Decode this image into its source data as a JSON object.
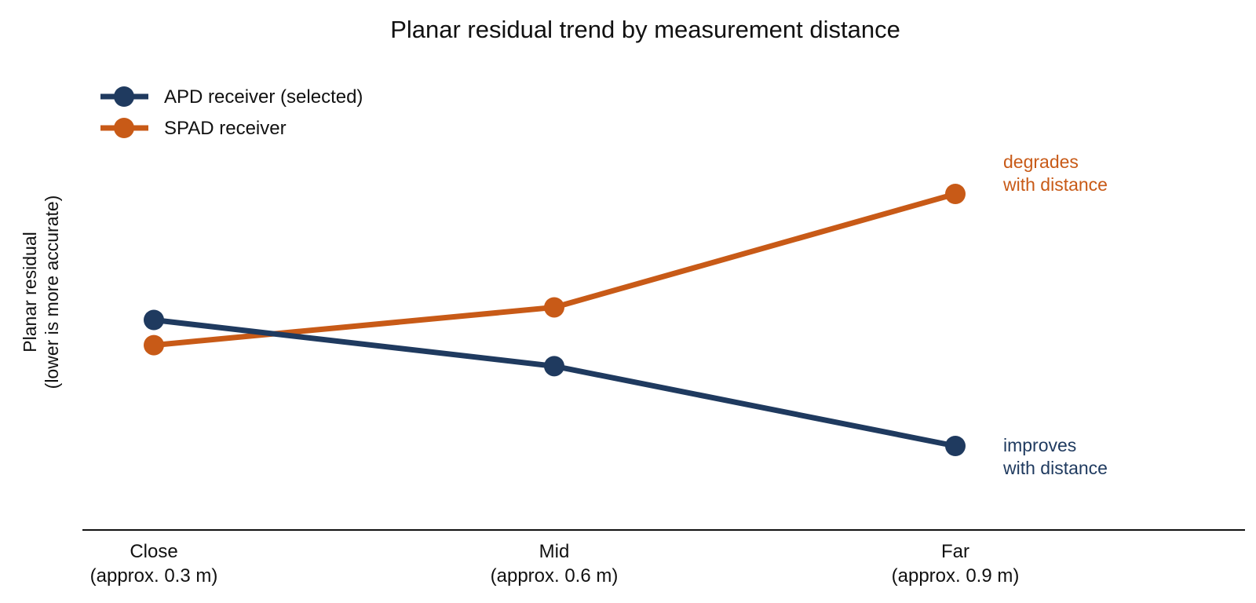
{
  "chart_data": {
    "type": "line",
    "title": "Planar residual trend by measurement distance",
    "ylabel": [
      "Planar residual",
      "(lower is more accurate)"
    ],
    "xlabel": "",
    "categories": [
      [
        "Close",
        "(approx. 0.3 m)"
      ],
      [
        "Mid",
        "(approx. 0.6 m)"
      ],
      [
        "Far",
        "(approx. 0.9 m)"
      ]
    ],
    "ylim": [
      0,
      1
    ],
    "y_ticks_shown": false,
    "grid": false,
    "legend": "top-left",
    "series": [
      {
        "name": "APD receiver (selected)",
        "color": "#1f3a5f",
        "values": [
          0.5,
          0.39,
          0.2
        ],
        "annotation": [
          "improves",
          "with distance"
        ]
      },
      {
        "name": "SPAD receiver",
        "color": "#c85a17",
        "values": [
          0.44,
          0.53,
          0.8
        ],
        "annotation": [
          "degrades",
          "with distance"
        ]
      }
    ]
  }
}
